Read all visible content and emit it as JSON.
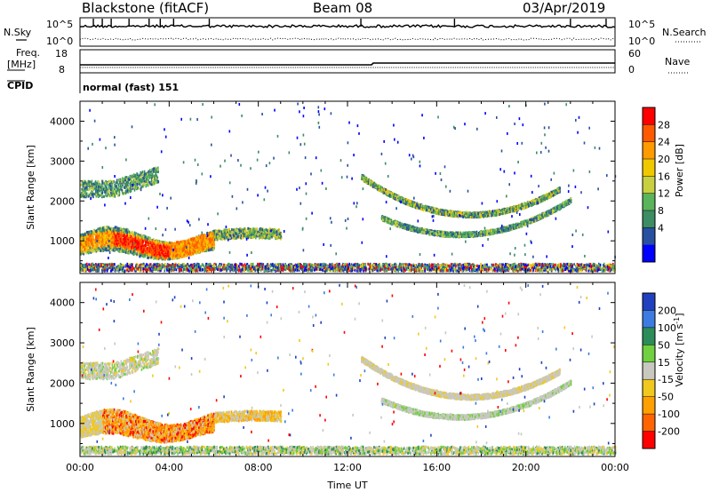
{
  "header": {
    "station": "Blackstone (fitACF)",
    "beam": "Beam 08",
    "date": "03/Apr/2019"
  },
  "panels": {
    "noise": {
      "left_label": "N.Sky",
      "right_label": "N.Search",
      "left_ticks": [
        "10^5",
        "10^0"
      ],
      "right_ticks": [
        "10^5",
        "10^0"
      ]
    },
    "freq": {
      "left_label_1": "Freq.",
      "left_label_2": "[MHz]",
      "right_label": "Nave",
      "left_ticks": [
        "18",
        "8"
      ],
      "right_ticks": [
        "60",
        "0"
      ]
    },
    "cpid": {
      "left_label": "CPID",
      "value": "normal (fast) 151"
    }
  },
  "chart_data": [
    {
      "type": "heatmap",
      "name": "power",
      "ylabel": "Slant Range [km]",
      "xlabel": "",
      "colorbar_label": "Power [dB]",
      "colorbar_ticks": [
        "28",
        "24",
        "20",
        "16",
        "12",
        "8",
        "4"
      ],
      "colorbar_colors": [
        "#ff0000",
        "#ff5a00",
        "#ff9a00",
        "#f0c800",
        "#c8d040",
        "#5ab45a",
        "#3c8c64",
        "#2850a0",
        "#0000ff"
      ],
      "y_ticks": [
        "4000",
        "3000",
        "2000",
        "1000"
      ],
      "y_values": [
        4000,
        3000,
        2000,
        1000
      ],
      "ylim": [
        180,
        4500
      ],
      "xlim_hours": [
        0,
        24
      ]
    },
    {
      "type": "heatmap",
      "name": "velocity",
      "ylabel": "Slant Range [km]",
      "xlabel": "Time UT",
      "colorbar_label": "Velocity [m s^-1]",
      "colorbar_ticks": [
        "200",
        "100",
        "50",
        "15",
        "-15",
        "-50",
        "-100",
        "-200"
      ],
      "colorbar_colors": [
        "#2040c0",
        "#3c7ce0",
        "#2c8c5a",
        "#70d040",
        "#c8c8c0",
        "#f0c820",
        "#ffa000",
        "#ff6400",
        "#ff0000"
      ],
      "y_ticks": [
        "4000",
        "3000",
        "2000",
        "1000"
      ],
      "y_values": [
        4000,
        3000,
        2000,
        1000
      ],
      "ylim": [
        180,
        4500
      ],
      "x_ticks": [
        "00:00",
        "04:00",
        "08:00",
        "12:00",
        "16:00",
        "20:00",
        "00:00"
      ],
      "x_values": [
        0,
        4,
        8,
        12,
        16,
        20,
        24
      ],
      "xlim_hours": [
        0,
        24
      ]
    }
  ]
}
